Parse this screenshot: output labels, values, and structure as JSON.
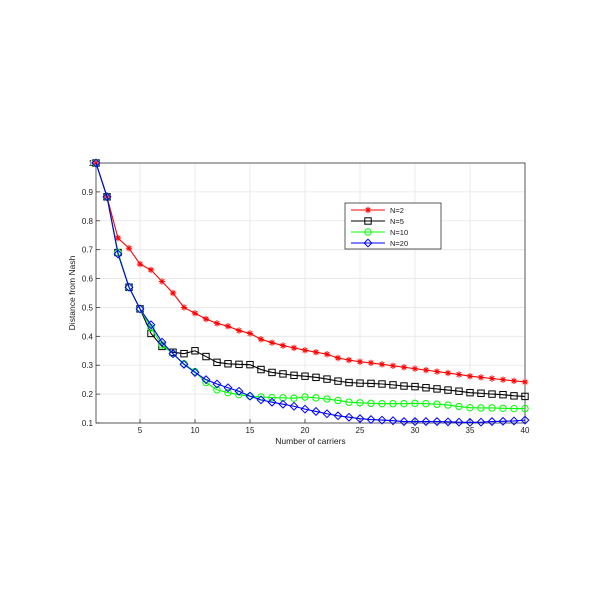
{
  "chart_data": {
    "type": "line",
    "title": "",
    "xlabel": "Number of carriers",
    "ylabel": "Distance from Nash",
    "xlim": [
      1,
      40
    ],
    "ylim": [
      0.1,
      1.0
    ],
    "xticks": [
      5,
      10,
      15,
      20,
      25,
      30,
      35,
      40
    ],
    "yticks": [
      0.1,
      0.2,
      0.3,
      0.4,
      0.5,
      0.6,
      0.7,
      0.8,
      0.9,
      1
    ],
    "grid": true,
    "legend_position": "top-right",
    "x": [
      1,
      2,
      3,
      4,
      5,
      6,
      7,
      8,
      9,
      10,
      11,
      12,
      13,
      14,
      15,
      16,
      17,
      18,
      19,
      20,
      21,
      22,
      23,
      24,
      25,
      26,
      27,
      28,
      29,
      30,
      31,
      32,
      33,
      34,
      35,
      36,
      37,
      38,
      39,
      40
    ],
    "series": [
      {
        "name": "N=2",
        "color": "#ff0000",
        "marker": "star",
        "values": [
          1.0,
          0.883,
          0.74,
          0.705,
          0.65,
          0.63,
          0.59,
          0.55,
          0.5,
          0.48,
          0.46,
          0.445,
          0.435,
          0.42,
          0.41,
          0.39,
          0.378,
          0.368,
          0.36,
          0.352,
          0.345,
          0.338,
          0.325,
          0.318,
          0.312,
          0.308,
          0.303,
          0.298,
          0.293,
          0.288,
          0.283,
          0.278,
          0.273,
          0.268,
          0.262,
          0.258,
          0.254,
          0.25,
          0.246,
          0.242
        ]
      },
      {
        "name": "N=5",
        "color": "#000000",
        "marker": "square",
        "values": [
          1.0,
          0.883,
          0.69,
          0.57,
          0.495,
          0.41,
          0.365,
          0.345,
          0.34,
          0.35,
          0.33,
          0.31,
          0.305,
          0.303,
          0.302,
          0.285,
          0.275,
          0.27,
          0.265,
          0.262,
          0.258,
          0.252,
          0.245,
          0.24,
          0.238,
          0.237,
          0.235,
          0.232,
          0.228,
          0.226,
          0.222,
          0.218,
          0.214,
          0.21,
          0.205,
          0.203,
          0.2,
          0.198,
          0.194,
          0.192
        ]
      },
      {
        "name": "N=10",
        "color": "#00ff00",
        "marker": "circle",
        "values": [
          1.0,
          0.883,
          0.69,
          0.57,
          0.495,
          0.43,
          0.37,
          0.34,
          0.305,
          0.278,
          0.24,
          0.215,
          0.205,
          0.198,
          0.193,
          0.19,
          0.188,
          0.187,
          0.186,
          0.19,
          0.187,
          0.183,
          0.178,
          0.172,
          0.17,
          0.168,
          0.167,
          0.167,
          0.167,
          0.168,
          0.167,
          0.165,
          0.162,
          0.157,
          0.153,
          0.152,
          0.152,
          0.151,
          0.15,
          0.15
        ]
      },
      {
        "name": "N=20",
        "color": "#0000ff",
        "marker": "diamond",
        "values": [
          1.0,
          0.883,
          0.685,
          0.57,
          0.495,
          0.44,
          0.38,
          0.34,
          0.303,
          0.275,
          0.25,
          0.235,
          0.222,
          0.21,
          0.193,
          0.18,
          0.172,
          0.165,
          0.158,
          0.148,
          0.14,
          0.132,
          0.125,
          0.12,
          0.115,
          0.112,
          0.11,
          0.108,
          0.105,
          0.105,
          0.105,
          0.105,
          0.104,
          0.103,
          0.102,
          0.103,
          0.105,
          0.106,
          0.107,
          0.11
        ]
      }
    ]
  }
}
